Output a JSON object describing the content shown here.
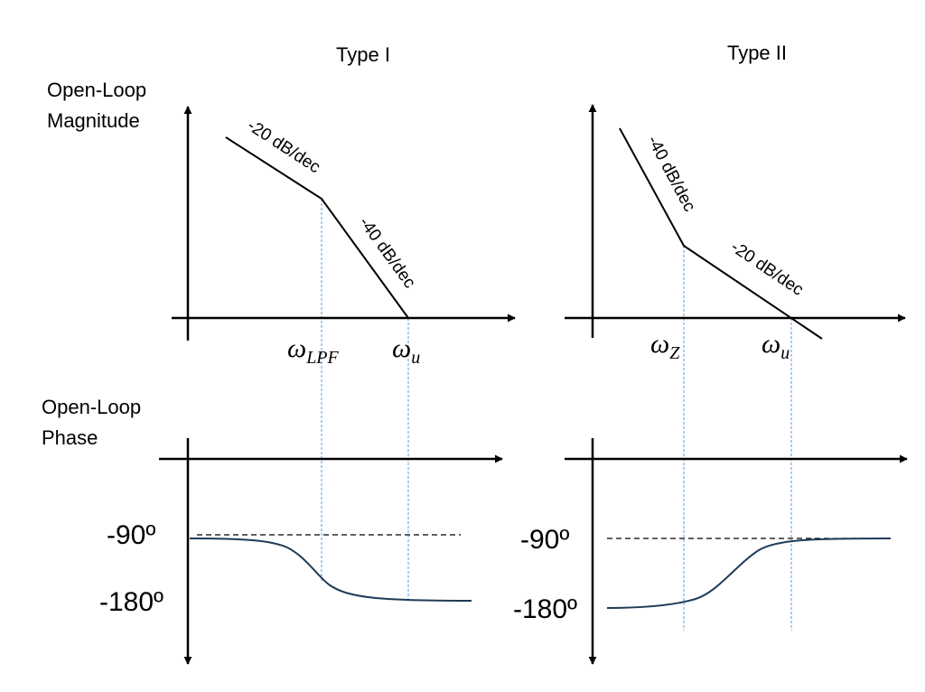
{
  "titles": {
    "type1": "Type I",
    "type2": "Type II"
  },
  "row_labels": {
    "magnitude_line1": "Open-Loop",
    "magnitude_line2": "Magnitude",
    "phase_line1": "Open-Loop",
    "phase_line2": "Phase"
  },
  "slopes": {
    "type1_low": "-20 dB/dec",
    "type1_high": "-40 dB/dec",
    "type2_low": "-40 dB/dec",
    "type2_high": "-20 dB/dec"
  },
  "frequencies": {
    "type1_corner_symbol": "ω",
    "type1_corner_sub": "LPF",
    "type1_unity_symbol": "ω",
    "type1_unity_sub": "u",
    "type2_corner_symbol": "ω",
    "type2_corner_sub": "Z",
    "type2_unity_symbol": "ω",
    "type2_unity_sub": "u"
  },
  "phase_levels": {
    "type1_upper": "-90º",
    "type1_lower": "-180º",
    "type2_upper": "-90º",
    "type2_lower": "-180º"
  },
  "colors": {
    "axis": "#000000",
    "phase_curve": "#1f3b57",
    "guide": "#5b9bd5",
    "reference_dash": "#000000"
  }
}
